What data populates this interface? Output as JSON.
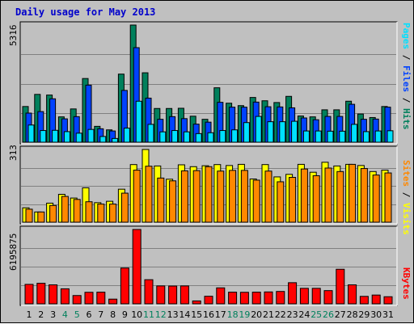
{
  "title": "Daily usage for May 2013",
  "colors": {
    "background": "#c0c0c0",
    "panel": "#c0c0c0",
    "grid": "#808080",
    "hits": "#00805c",
    "files": "#0042ff",
    "pages": "#00e0ff",
    "visits": "#ffff00",
    "sites": "#ff8800",
    "kbytes": "#ff0000",
    "weekend_day": "#00805c",
    "weekday_day": "#000000",
    "title": "#0000cc"
  },
  "legend": {
    "top": [
      {
        "label": "Pages",
        "color": "#00e0ff"
      },
      {
        "label": " / ",
        "color": "#000000"
      },
      {
        "label": "Files",
        "color": "#0042ff"
      },
      {
        "label": " / ",
        "color": "#000000"
      },
      {
        "label": "Hits",
        "color": "#00805c"
      }
    ],
    "middle": [
      {
        "label": "Sites",
        "color": "#ff8800"
      },
      {
        "label": " / ",
        "color": "#000000"
      },
      {
        "label": "Visits",
        "color": "#ffff00"
      }
    ],
    "bottom": [
      {
        "label": "KBytes",
        "color": "#ff0000"
      }
    ]
  },
  "chart_data": [
    {
      "type": "bar",
      "title": "Daily usage for May 2013",
      "ylabel": "5316",
      "ylim": [
        0,
        5316
      ],
      "categories": [
        "1",
        "2",
        "3",
        "4",
        "5",
        "6",
        "7",
        "8",
        "9",
        "10",
        "11",
        "12",
        "13",
        "14",
        "15",
        "16",
        "17",
        "18",
        "19",
        "20",
        "21",
        "22",
        "23",
        "24",
        "25",
        "26",
        "27",
        "28",
        "29",
        "30",
        "31"
      ],
      "weekend_days": [
        4,
        5,
        11,
        12,
        18,
        19,
        25,
        26
      ],
      "series": [
        {
          "name": "Hits",
          "values": [
            1620,
            2170,
            2140,
            1150,
            1510,
            2890,
            720,
            560,
            3090,
            5316,
            3150,
            1530,
            1530,
            1540,
            1180,
            1040,
            2470,
            1770,
            1660,
            2030,
            1880,
            1800,
            2080,
            1190,
            1150,
            1470,
            1470,
            1860,
            1280,
            1120,
            1620
          ]
        },
        {
          "name": "Files",
          "values": [
            1320,
            1390,
            1970,
            1060,
            1160,
            2590,
            610,
            510,
            2350,
            4290,
            2000,
            1040,
            1160,
            1070,
            820,
            910,
            1810,
            1590,
            1590,
            1820,
            1610,
            1600,
            1560,
            1100,
            1020,
            1170,
            1170,
            1720,
            1040,
            1050,
            1590
          ]
        },
        {
          "name": "Pages",
          "values": [
            780,
            530,
            540,
            480,
            410,
            580,
            260,
            170,
            640,
            1860,
            810,
            470,
            530,
            470,
            390,
            430,
            530,
            560,
            890,
            1170,
            930,
            930,
            950,
            510,
            510,
            500,
            500,
            810,
            480,
            510,
            520
          ]
        }
      ]
    },
    {
      "type": "bar",
      "ylabel": "313",
      "ylim": [
        0,
        313
      ],
      "categories": [
        "1",
        "2",
        "3",
        "4",
        "5",
        "6",
        "7",
        "8",
        "9",
        "10",
        "11",
        "12",
        "13",
        "14",
        "15",
        "16",
        "17",
        "18",
        "19",
        "20",
        "21",
        "22",
        "23",
        "24",
        "25",
        "26",
        "27",
        "28",
        "29",
        "30",
        "31"
      ],
      "series": [
        {
          "name": "Visits",
          "values": [
            62,
            44,
            82,
            120,
            104,
            148,
            84,
            90,
            142,
            248,
            313,
            242,
            185,
            247,
            239,
            243,
            248,
            244,
            249,
            186,
            248,
            195,
            206,
            249,
            215,
            258,
            242,
            249,
            244,
            218,
            224
          ]
        },
        {
          "name": "Sites",
          "values": [
            56,
            44,
            72,
            111,
            98,
            88,
            78,
            78,
            125,
            224,
            241,
            190,
            178,
            221,
            222,
            239,
            220,
            223,
            223,
            181,
            220,
            174,
            193,
            229,
            200,
            233,
            218,
            249,
            231,
            203,
            212
          ]
        }
      ]
    },
    {
      "type": "bar",
      "ylabel": "6195875",
      "ylim": [
        0,
        6195875
      ],
      "categories": [
        "1",
        "2",
        "3",
        "4",
        "5",
        "6",
        "7",
        "8",
        "9",
        "10",
        "11",
        "12",
        "13",
        "14",
        "15",
        "16",
        "17",
        "18",
        "19",
        "20",
        "21",
        "22",
        "23",
        "24",
        "25",
        "26",
        "27",
        "28",
        "29",
        "30",
        "31"
      ],
      "series": [
        {
          "name": "KBytes",
          "values": [
            1620000,
            1710000,
            1580000,
            1250000,
            690000,
            960000,
            970000,
            390000,
            2980000,
            6195875,
            2010000,
            1490000,
            1480000,
            1490000,
            240000,
            630000,
            1330000,
            970000,
            960000,
            970000,
            990000,
            1030000,
            1760000,
            1290000,
            1290000,
            1100000,
            2880000,
            1580000,
            620000,
            730000,
            590000
          ]
        }
      ]
    }
  ]
}
